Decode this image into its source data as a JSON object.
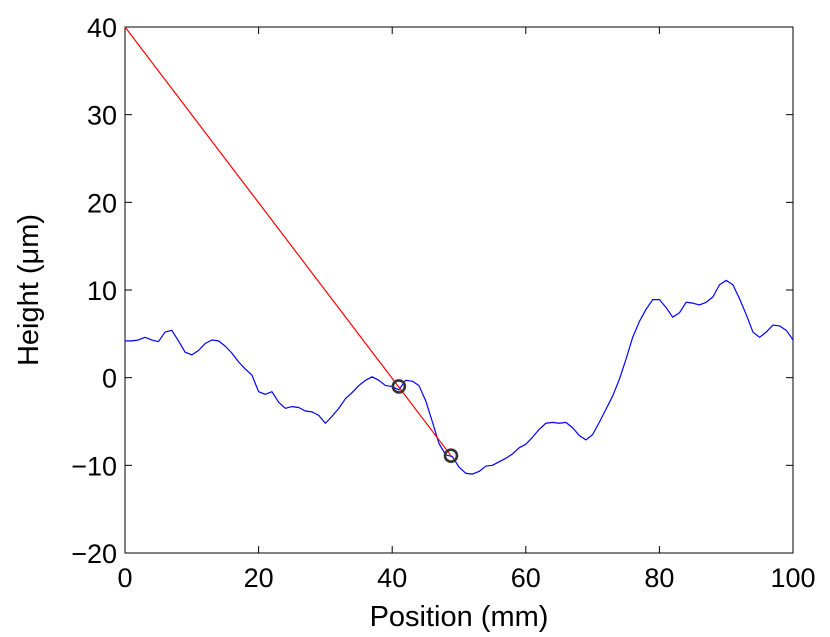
{
  "chart_data": {
    "type": "line",
    "xlabel": "Position (mm)",
    "ylabel": "Height (μm)",
    "xlim": [
      0,
      100
    ],
    "ylim": [
      -20,
      40
    ],
    "xticks": [
      0,
      20,
      40,
      60,
      80,
      100
    ],
    "yticks": [
      -20,
      -10,
      0,
      10,
      20,
      30,
      40
    ],
    "xtick_labels": [
      "0",
      "20",
      "40",
      "60",
      "80",
      "100"
    ],
    "ytick_labels": [
      "−20",
      "−10",
      "0",
      "10",
      "20",
      "30",
      "40"
    ],
    "grid": false,
    "series": [
      {
        "color": "#0000ff",
        "x": [
          0,
          1,
          2,
          3,
          4,
          5,
          6,
          7,
          8,
          9,
          10,
          11,
          12,
          13,
          14,
          15,
          16,
          17,
          18,
          19,
          20,
          21,
          22,
          23,
          24,
          25,
          26,
          27,
          28,
          29,
          30,
          31,
          32,
          33,
          34,
          35,
          36,
          37,
          38,
          39,
          40,
          41,
          42,
          43,
          44,
          45,
          46,
          47,
          48,
          49,
          50,
          51,
          52,
          53,
          54,
          55,
          56,
          57,
          58,
          59,
          60,
          61,
          62,
          63,
          64,
          65,
          66,
          67,
          68,
          69,
          70,
          71,
          72,
          73,
          74,
          75,
          76,
          77,
          78,
          79,
          80,
          81,
          82,
          83,
          84,
          85,
          86,
          87,
          88,
          89,
          90,
          91,
          92,
          93,
          94,
          95,
          96,
          97,
          98,
          99,
          100
        ],
        "y": [
          4.2,
          4.2,
          4.3,
          4.6,
          4.3,
          4.1,
          5.2,
          5.4,
          4.2,
          2.9,
          2.6,
          3.1,
          3.9,
          4.3,
          4.2,
          3.6,
          2.8,
          1.8,
          1.0,
          0.3,
          -1.6,
          -1.9,
          -1.6,
          -2.8,
          -3.5,
          -3.3,
          -3.4,
          -3.8,
          -3.9,
          -4.3,
          -5.2,
          -4.4,
          -3.5,
          -2.4,
          -1.7,
          -0.9,
          -0.3,
          0.1,
          -0.3,
          -0.9,
          -1.0,
          -1.4,
          -0.3,
          -0.4,
          -0.9,
          -2.6,
          -5.0,
          -7.5,
          -8.8,
          -9.0,
          -10.2,
          -10.9,
          -11.0,
          -10.7,
          -10.1,
          -10.0,
          -9.6,
          -9.2,
          -8.7,
          -8.0,
          -7.6,
          -6.8,
          -5.9,
          -5.2,
          -5.1,
          -5.2,
          -5.1,
          -5.7,
          -6.6,
          -7.1,
          -6.5,
          -5.1,
          -3.6,
          -2.1,
          -0.2,
          2.1,
          4.6,
          6.4,
          7.8,
          8.9,
          8.9,
          8.0,
          6.9,
          7.4,
          8.6,
          8.5,
          8.3,
          8.6,
          9.2,
          10.6,
          11.1,
          10.6,
          9.0,
          7.2,
          5.2,
          4.6,
          5.2,
          6.0,
          5.9,
          5.4,
          4.3
        ]
      },
      {
        "color": "#ff0000",
        "x": [
          0,
          48.8
        ],
        "y": [
          40,
          -8.9
        ]
      }
    ],
    "markers": [
      {
        "x": 41,
        "y": -1.0,
        "color": "#333333"
      },
      {
        "x": 48.8,
        "y": -8.9,
        "color": "#333333"
      }
    ]
  }
}
